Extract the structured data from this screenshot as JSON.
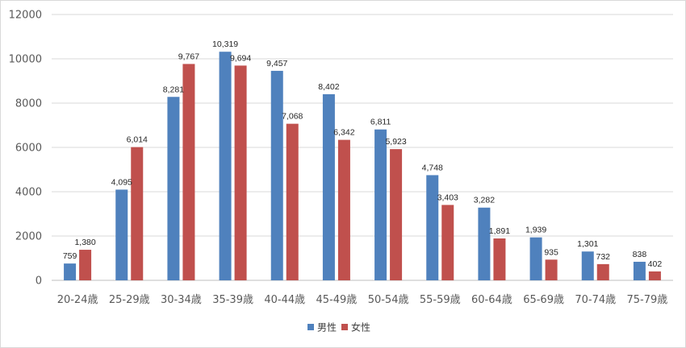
{
  "chart_data": {
    "type": "bar",
    "title": "",
    "xlabel": "",
    "ylabel": "",
    "categories": [
      "20-24歳",
      "25-29歳",
      "30-34歳",
      "35-39歳",
      "40-44歳",
      "45-49歳",
      "50-54歳",
      "55-59歳",
      "60-64歳",
      "65-69歳",
      "70-74歳",
      "75-79歳"
    ],
    "series": [
      {
        "name": "男性",
        "color": "#4F81BD",
        "values": [
          759,
          4095,
          8281,
          10319,
          9457,
          8402,
          6811,
          4748,
          3282,
          1939,
          1301,
          838
        ],
        "labels": [
          "759",
          "4,095",
          "8,281",
          "10,319",
          "9,457",
          "8,402",
          "6,811",
          "4,748",
          "3,282",
          "1,939",
          "1,301",
          "838"
        ]
      },
      {
        "name": "女性",
        "color": "#C0504D",
        "values": [
          1380,
          6014,
          9767,
          9694,
          7068,
          6342,
          5923,
          3403,
          1891,
          935,
          732,
          402
        ],
        "labels": [
          "1,380",
          "6,014",
          "9,767",
          "9,694",
          "7,068",
          "6,342",
          "5,923",
          "3,403",
          "1,891",
          "935",
          "732",
          "402"
        ]
      }
    ],
    "ylim": [
      0,
      12000
    ],
    "yticks": [
      "0",
      "2000",
      "4000",
      "6000",
      "8000",
      "10000",
      "12000"
    ],
    "ytick_values": [
      0,
      2000,
      4000,
      6000,
      8000,
      10000,
      12000
    ],
    "grid": true,
    "legend": "bottom"
  }
}
